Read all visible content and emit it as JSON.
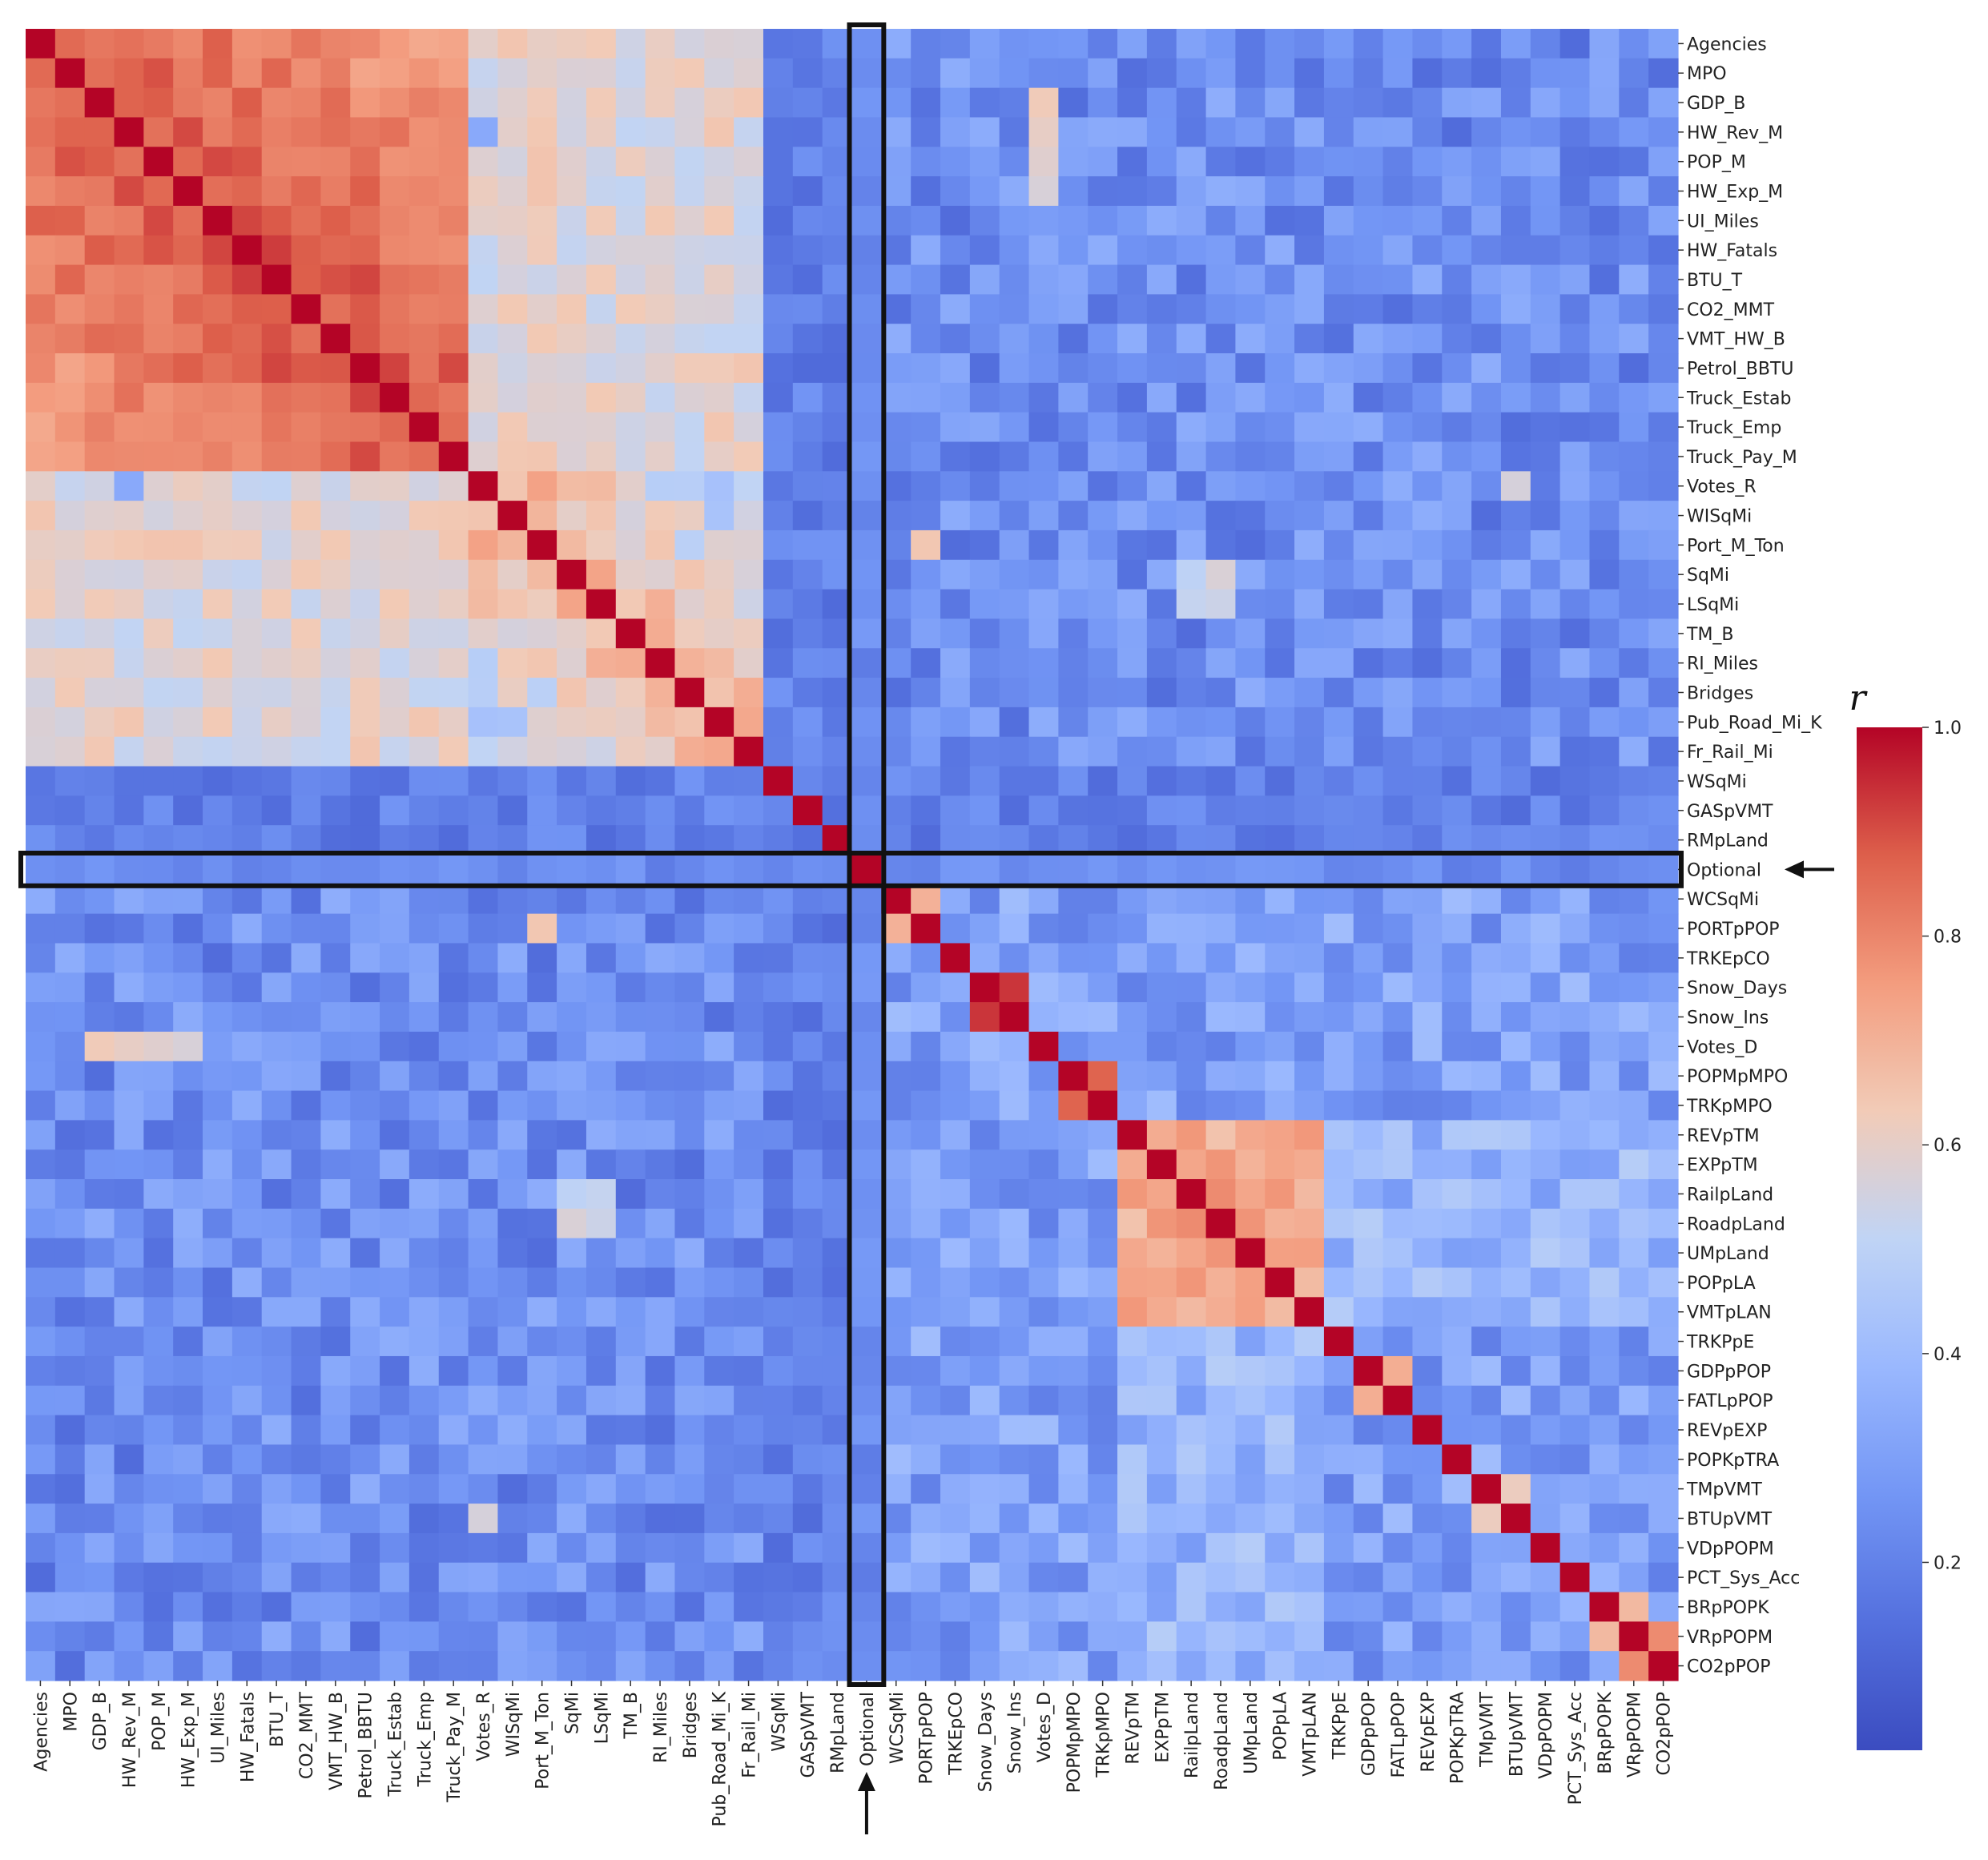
{
  "chart_data": {
    "type": "heatmap",
    "title": "",
    "variables": [
      "Agencies",
      "MPO",
      "GDP_B",
      "HW_Rev_M",
      "POP_M",
      "HW_Exp_M",
      "UI_Miles",
      "HW_Fatals",
      "BTU_T",
      "CO2_MMT",
      "VMT_HW_B",
      "Petrol_BBTU",
      "Truck_Estab",
      "Truck_Emp",
      "Truck_Pay_M",
      "Votes_R",
      "WISqMi",
      "Port_M_Ton",
      "SqMi",
      "LSqMi",
      "TM_B",
      "RI_Miles",
      "Bridges",
      "Pub_Road_Mi_K",
      "Fr_Rail_Mi",
      "WSqMi",
      "GASpVMT",
      "RMpLand",
      "Optional",
      "WCSqMi",
      "PORTpPOP",
      "TRKEpCO",
      "Snow_Days",
      "Snow_Ins",
      "Votes_D",
      "POPMpMPO",
      "TRKpMPO",
      "REVpTM",
      "EXPpTM",
      "RailpLand",
      "RoadpLand",
      "UMpLand",
      "POPpLA",
      "VMTpLAN",
      "TRKPpE",
      "GDPpPOP",
      "FATLpPOP",
      "REVpEXP",
      "POPKpTRA",
      "TMpVMT",
      "BTUpVMT",
      "VDpPOPM",
      "PCT_Sys_Acc",
      "BRpPOPK",
      "VRpPOPM",
      "CO2pPOP"
    ],
    "highlighted_variable": "Optional",
    "colorbar": {
      "title": "r",
      "ticks": [
        0.2,
        0.4,
        0.6,
        0.8,
        1.0
      ],
      "tick_labels": [
        "0.2",
        "0.4",
        "0.6",
        "0.8",
        "1.0"
      ],
      "range": [
        0.02,
        1.0
      ],
      "colormap": "coolwarm"
    },
    "value_estimates": {
      "description": "block-structured absolute correlation estimates read from the color scale",
      "diagonal": 1.0,
      "blocks": [
        {
          "group_a": "Agencies..Truck_Pay_M",
          "group_b": "Agencies..Truck_Pay_M",
          "r": 0.8
        },
        {
          "group_a": "Agencies..Truck_Pay_M",
          "group_b": "Votes_R..Fr_Rail_Mi",
          "r": 0.62
        },
        {
          "group_a": "Votes_R..Fr_Rail_Mi",
          "group_b": "Votes_R..Fr_Rail_Mi",
          "r": 0.6
        },
        {
          "group_a": "REVpTM..VMTpLAN",
          "group_b": "REVpTM..VMTpLAN",
          "r": 0.75
        },
        {
          "group_a": "Optional",
          "group_b": "all others",
          "r": 0.2
        },
        {
          "group_a": "WSqMi..RMpLand",
          "group_b": "all others",
          "r": 0.15
        },
        {
          "group_a": "Snow_Days",
          "group_b": "Snow_Ins",
          "r": 0.92
        },
        {
          "group_a": "POPMpMPO",
          "group_b": "TRKpMPO",
          "r": 0.88
        },
        {
          "group_a": "WCSqMi",
          "group_b": "PORTpPOP",
          "r": 0.7
        },
        {
          "group_a": "GDPpPOP",
          "group_b": "FATLpPOP",
          "r": 0.7
        },
        {
          "group_a": "VRpPOPM",
          "group_b": "CO2pPOP",
          "r": 0.8
        }
      ],
      "background_r": 0.3
    }
  },
  "colors": {
    "low": "#3b4cc0",
    "mid": "#dddddd",
    "high": "#b40426",
    "highlight_box": "#111111",
    "arrow": "#111111"
  }
}
